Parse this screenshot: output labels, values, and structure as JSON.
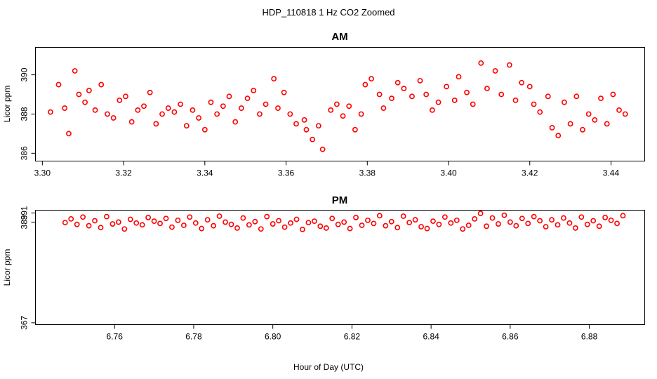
{
  "figure": {
    "title": "HDP_110818  1 Hz CO2 Zoomed",
    "xlabel": "Hour of Day (UTC)"
  },
  "colors": {
    "points": "#ff0000",
    "axes": "#000000",
    "background": "#ffffff"
  },
  "chart_data": [
    {
      "type": "scatter",
      "title": "AM",
      "xlabel": "",
      "ylabel": "Licor ppm",
      "xlim": [
        3.2983,
        3.4483
      ],
      "ylim": [
        385.6,
        391.4
      ],
      "xticks": [
        3.3,
        3.32,
        3.34,
        3.36,
        3.38,
        3.4,
        3.42,
        3.44
      ],
      "xtick_labels": [
        "3.30",
        "3.32",
        "3.34",
        "3.36",
        "3.38",
        "3.40",
        "3.42",
        "3.44"
      ],
      "yticks": [
        386,
        388,
        390
      ],
      "ytick_labels": [
        "386",
        "388",
        "390"
      ],
      "marker": "open-circle",
      "series": [
        {
          "name": "AM CO2",
          "x": [
            3.302,
            3.304,
            3.3055,
            3.3065,
            3.308,
            3.309,
            3.3105,
            3.3115,
            3.313,
            3.3145,
            3.316,
            3.3175,
            3.319,
            3.3205,
            3.322,
            3.3235,
            3.325,
            3.3265,
            3.328,
            3.3295,
            3.331,
            3.3325,
            3.334,
            3.3355,
            3.337,
            3.3385,
            3.34,
            3.3415,
            3.343,
            3.3445,
            3.346,
            3.3475,
            3.349,
            3.3505,
            3.352,
            3.3535,
            3.355,
            3.357,
            3.358,
            3.3595,
            3.361,
            3.3625,
            3.3645,
            3.365,
            3.3665,
            3.368,
            3.369,
            3.371,
            3.3725,
            3.374,
            3.3755,
            3.377,
            3.3785,
            3.3795,
            3.381,
            3.383,
            3.384,
            3.386,
            3.3875,
            3.389,
            3.391,
            3.393,
            3.3945,
            3.396,
            3.3975,
            3.3995,
            3.4015,
            3.4025,
            3.4045,
            3.406,
            3.408,
            3.4095,
            3.4115,
            3.413,
            3.415,
            3.4165,
            3.418,
            3.42,
            3.421,
            3.4225,
            3.4245,
            3.4255,
            3.427,
            3.4285,
            3.43,
            3.4315,
            3.433,
            3.4345,
            3.436,
            3.4375,
            3.439,
            3.4405,
            3.442,
            3.4435
          ],
          "y": [
            388.1,
            389.5,
            388.3,
            387.0,
            390.2,
            389.0,
            388.6,
            389.2,
            388.2,
            389.5,
            388.0,
            387.8,
            388.7,
            388.9,
            387.6,
            388.2,
            388.4,
            389.1,
            387.5,
            388.0,
            388.3,
            388.1,
            388.5,
            387.4,
            388.2,
            387.8,
            387.2,
            388.6,
            388.0,
            388.4,
            388.9,
            387.6,
            388.3,
            388.8,
            389.2,
            388.0,
            388.5,
            389.8,
            388.3,
            389.1,
            388.0,
            387.5,
            387.7,
            387.2,
            386.7,
            387.4,
            386.2,
            388.2,
            388.5,
            387.9,
            388.4,
            387.2,
            388.0,
            389.5,
            389.8,
            389.0,
            388.3,
            388.8,
            389.6,
            389.3,
            388.9,
            389.7,
            389.0,
            388.2,
            388.6,
            389.4,
            388.7,
            389.9,
            389.1,
            388.5,
            390.6,
            389.3,
            390.2,
            389.0,
            390.5,
            388.7,
            389.6,
            389.4,
            388.5,
            388.1,
            388.9,
            387.3,
            386.9,
            388.6,
            387.5,
            388.9,
            387.2,
            388.0,
            387.7,
            388.8,
            387.5,
            389.0,
            388.2,
            388.0
          ]
        }
      ]
    },
    {
      "type": "scatter",
      "title": "PM",
      "xlabel": "",
      "ylabel": "Licor ppm",
      "xlim": [
        6.74,
        6.894
      ],
      "ylim": [
        366.6,
        391.6
      ],
      "xticks": [
        6.76,
        6.78,
        6.8,
        6.82,
        6.84,
        6.86,
        6.88
      ],
      "xtick_labels": [
        "6.76",
        "6.78",
        "6.80",
        "6.82",
        "6.84",
        "6.86",
        "6.88"
      ],
      "yticks": [
        367,
        389,
        391
      ],
      "ytick_labels": [
        "367",
        "389",
        "391"
      ],
      "marker": "open-circle",
      "series": [
        {
          "name": "PM CO2",
          "x": [
            6.7475,
            6.749,
            6.7505,
            6.752,
            6.7535,
            6.755,
            6.7565,
            6.758,
            6.7595,
            6.761,
            6.7625,
            6.764,
            6.7655,
            6.767,
            6.7685,
            6.77,
            6.7715,
            6.773,
            6.7745,
            6.776,
            6.7775,
            6.779,
            6.7805,
            6.782,
            6.7835,
            6.785,
            6.7865,
            6.788,
            6.7895,
            6.791,
            6.7925,
            6.794,
            6.7955,
            6.797,
            6.7985,
            6.8,
            6.8015,
            6.803,
            6.8045,
            6.806,
            6.8075,
            6.809,
            6.8105,
            6.812,
            6.8135,
            6.815,
            6.8165,
            6.818,
            6.8195,
            6.821,
            6.8225,
            6.824,
            6.8255,
            6.827,
            6.8285,
            6.83,
            6.8315,
            6.833,
            6.8345,
            6.836,
            6.8375,
            6.839,
            6.8405,
            6.842,
            6.8435,
            6.845,
            6.8465,
            6.848,
            6.8495,
            6.851,
            6.8525,
            6.854,
            6.8555,
            6.857,
            6.8585,
            6.86,
            6.8615,
            6.863,
            6.8645,
            6.866,
            6.8675,
            6.869,
            6.8705,
            6.872,
            6.8735,
            6.875,
            6.8765,
            6.878,
            6.8795,
            6.881,
            6.8825,
            6.884,
            6.8855,
            6.887,
            6.8885
          ],
          "y": [
            388.9,
            389.7,
            388.5,
            390.1,
            388.2,
            389.3,
            387.8,
            390.2,
            388.6,
            389.0,
            387.5,
            389.6,
            388.8,
            388.4,
            390.0,
            389.2,
            388.7,
            389.8,
            387.9,
            389.4,
            388.3,
            390.1,
            388.8,
            387.6,
            389.5,
            388.2,
            390.3,
            389.0,
            388.5,
            387.7,
            389.9,
            388.4,
            389.1,
            387.5,
            390.2,
            388.6,
            389.3,
            387.9,
            388.8,
            389.6,
            387.4,
            388.9,
            389.2,
            388.1,
            387.7,
            389.8,
            388.5,
            389.0,
            387.6,
            390.0,
            388.3,
            389.4,
            388.7,
            390.4,
            388.2,
            389.1,
            387.8,
            390.3,
            388.9,
            389.5,
            388.0,
            387.6,
            389.2,
            388.5,
            390.1,
            388.8,
            389.4,
            387.5,
            388.3,
            389.7,
            390.9,
            388.1,
            389.9,
            388.6,
            390.5,
            389.0,
            388.2,
            389.8,
            388.7,
            390.2,
            389.3,
            388.0,
            389.5,
            388.4,
            389.9,
            388.8,
            387.7,
            390.1,
            388.5,
            389.3,
            388.1,
            390.0,
            389.4,
            388.7,
            390.4
          ]
        }
      ]
    }
  ]
}
